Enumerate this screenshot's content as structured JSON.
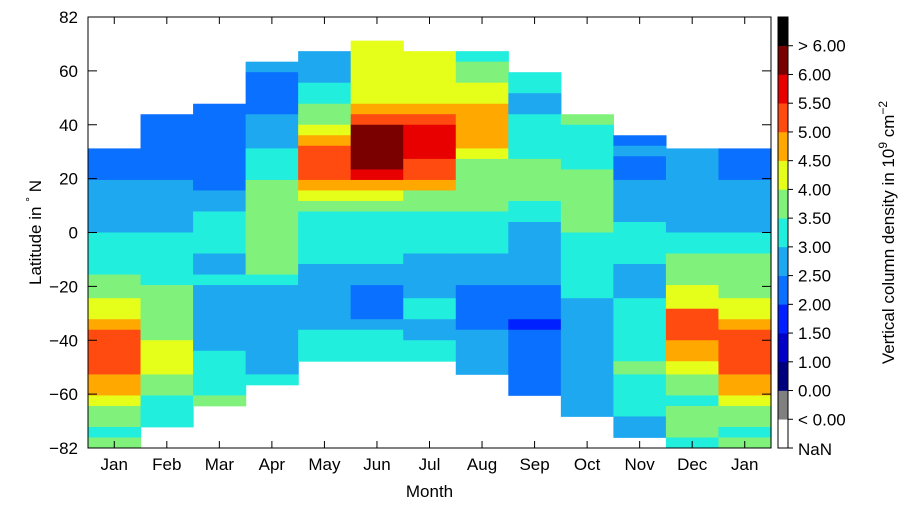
{
  "chart_data": {
    "type": "heatmap",
    "title": "",
    "xlabel": "Month",
    "ylabel": "Latitude in ° N",
    "ylabel_parts": {
      "main": "Latitude in ",
      "deg": "°",
      "tail": " N"
    },
    "x_categories": [
      "Jan",
      "Feb",
      "Mar",
      "Apr",
      "May",
      "Jun",
      "Jul",
      "Aug",
      "Sep",
      "Oct",
      "Nov",
      "Dec",
      "Jan"
    ],
    "yticks": [
      "82",
      "60",
      "40",
      "20",
      "0",
      "−20",
      "−40",
      "−60",
      "−82"
    ],
    "ylim": [
      -82,
      82
    ],
    "colorbar": {
      "label": "Vertical column density in 10⁹ cm⁻²",
      "label_parts": {
        "main": "Vertical column density in 10",
        "exp1": "9",
        "mid": " cm",
        "exp2": "−2"
      },
      "levels": [
        {
          "label": "NaN",
          "color": "#ffffff"
        },
        {
          "label": "< 0.00",
          "color": "#808080"
        },
        {
          "label": "0.00",
          "color": "#00007f"
        },
        {
          "label": "1.00",
          "color": "#0000c8"
        },
        {
          "label": "1.50",
          "color": "#0020ff"
        },
        {
          "label": "2.00",
          "color": "#0a70ff"
        },
        {
          "label": "2.50",
          "color": "#1ea8f0"
        },
        {
          "label": "3.00",
          "color": "#22eede"
        },
        {
          "label": "3.50",
          "color": "#80f27c"
        },
        {
          "label": "4.00",
          "color": "#e6ff1a"
        },
        {
          "label": "4.50",
          "color": "#ffa800"
        },
        {
          "label": "5.00",
          "color": "#ff4a10"
        },
        {
          "label": "5.50",
          "color": "#e80000"
        },
        {
          "label": "6.00",
          "color": "#7a0000"
        },
        {
          "label": "> 6.00",
          "color": "#000000"
        }
      ]
    },
    "columns": [
      {
        "month": "Jan",
        "cells": [
          {
            "lat": [
              20,
              32
            ],
            "level": "2.00"
          },
          {
            "lat": [
              0,
              20
            ],
            "level": "2.50"
          },
          {
            "lat": [
              -16,
              0
            ],
            "level": "3.00"
          },
          {
            "lat": [
              -25,
              -16
            ],
            "level": "3.50"
          },
          {
            "lat": [
              -33,
              -25
            ],
            "level": "4.00"
          },
          {
            "lat": [
              -37,
              -33
            ],
            "level": "4.50"
          },
          {
            "lat": [
              -54,
              -37
            ],
            "level": "5.00"
          },
          {
            "lat": [
              -62,
              -54
            ],
            "level": "4.50"
          },
          {
            "lat": [
              -66,
              -62
            ],
            "level": "4.00"
          },
          {
            "lat": [
              -74,
              -66
            ],
            "level": "3.50"
          },
          {
            "lat": [
              -78,
              -74
            ],
            "level": "3.00"
          },
          {
            "lat": [
              -82,
              -78
            ],
            "level": "3.50"
          }
        ]
      },
      {
        "month": "Feb",
        "cells": [
          {
            "lat": [
              20,
              45
            ],
            "level": "2.00"
          },
          {
            "lat": [
              0,
              20
            ],
            "level": "2.50"
          },
          {
            "lat": [
              -20,
              0
            ],
            "level": "3.00"
          },
          {
            "lat": [
              -41,
              -20
            ],
            "level": "3.50"
          },
          {
            "lat": [
              -54,
              -41
            ],
            "level": "4.00"
          },
          {
            "lat": [
              -62,
              -54
            ],
            "level": "3.50"
          },
          {
            "lat": [
              -74,
              -62
            ],
            "level": "3.00"
          }
        ]
      },
      {
        "month": "Mar",
        "cells": [
          {
            "lat": [
              16,
              49
            ],
            "level": "2.00"
          },
          {
            "lat": [
              8,
              16
            ],
            "level": "2.50"
          },
          {
            "lat": [
              -8,
              8
            ],
            "level": "3.00"
          },
          {
            "lat": [
              -16,
              -8
            ],
            "level": "2.50"
          },
          {
            "lat": [
              -20,
              -16
            ],
            "level": "3.00"
          },
          {
            "lat": [
              -45,
              -20
            ],
            "level": "2.50"
          },
          {
            "lat": [
              -62,
              -45
            ],
            "level": "3.00"
          },
          {
            "lat": [
              -66,
              -62
            ],
            "level": "3.50"
          }
        ]
      },
      {
        "month": "Apr",
        "cells": [
          {
            "lat": [
              61,
              65
            ],
            "level": "2.50"
          },
          {
            "lat": [
              45,
              61
            ],
            "level": "2.00"
          },
          {
            "lat": [
              32,
              45
            ],
            "level": "2.50"
          },
          {
            "lat": [
              20,
              32
            ],
            "level": "3.00"
          },
          {
            "lat": [
              -16,
              20
            ],
            "level": "3.50"
          },
          {
            "lat": [
              -20,
              -16
            ],
            "level": "3.00"
          },
          {
            "lat": [
              -54,
              -20
            ],
            "level": "2.50"
          },
          {
            "lat": [
              -58,
              -54
            ],
            "level": "3.00"
          }
        ]
      },
      {
        "month": "May",
        "cells": [
          {
            "lat": [
              57,
              69
            ],
            "level": "2.50"
          },
          {
            "lat": [
              49,
              57
            ],
            "level": "3.00"
          },
          {
            "lat": [
              41,
              49
            ],
            "level": "3.50"
          },
          {
            "lat": [
              37,
              41
            ],
            "level": "4.00"
          },
          {
            "lat": [
              33,
              37
            ],
            "level": "4.50"
          },
          {
            "lat": [
              20,
              33
            ],
            "level": "5.00"
          },
          {
            "lat": [
              16,
              20
            ],
            "level": "4.50"
          },
          {
            "lat": [
              12,
              16
            ],
            "level": "4.00"
          },
          {
            "lat": [
              8,
              12
            ],
            "level": "3.50"
          },
          {
            "lat": [
              4,
              8
            ],
            "level": "3.00"
          },
          {
            "lat": [
              -12,
              4
            ],
            "level": "3.00"
          },
          {
            "lat": [
              -37,
              -12
            ],
            "level": "2.50"
          },
          {
            "lat": [
              -49,
              -37
            ],
            "level": "3.00"
          }
        ]
      },
      {
        "month": "Jun",
        "cells": [
          {
            "lat": [
              49,
              73
            ],
            "level": "4.00"
          },
          {
            "lat": [
              45,
              49
            ],
            "level": "4.50"
          },
          {
            "lat": [
              41,
              45
            ],
            "level": "5.00"
          },
          {
            "lat": [
              24,
              41
            ],
            "level": "6.00"
          },
          {
            "lat": [
              20,
              24
            ],
            "level": "5.50"
          },
          {
            "lat": [
              16,
              20
            ],
            "level": "4.50"
          },
          {
            "lat": [
              12,
              16
            ],
            "level": "4.00"
          },
          {
            "lat": [
              8,
              12
            ],
            "level": "3.50"
          },
          {
            "lat": [
              -12,
              8
            ],
            "level": "3.00"
          },
          {
            "lat": [
              -20,
              -12
            ],
            "level": "2.50"
          },
          {
            "lat": [
              -33,
              -20
            ],
            "level": "2.00"
          },
          {
            "lat": [
              -37,
              -33
            ],
            "level": "2.50"
          },
          {
            "lat": [
              -49,
              -37
            ],
            "level": "3.00"
          }
        ]
      },
      {
        "month": "Jul",
        "cells": [
          {
            "lat": [
              49,
              69
            ],
            "level": "4.00"
          },
          {
            "lat": [
              45,
              49
            ],
            "level": "4.50"
          },
          {
            "lat": [
              41,
              45
            ],
            "level": "5.00"
          },
          {
            "lat": [
              28,
              41
            ],
            "level": "5.50"
          },
          {
            "lat": [
              20,
              28
            ],
            "level": "5.00"
          },
          {
            "lat": [
              16,
              20
            ],
            "level": "4.50"
          },
          {
            "lat": [
              8,
              16
            ],
            "level": "3.50"
          },
          {
            "lat": [
              -8,
              8
            ],
            "level": "3.00"
          },
          {
            "lat": [
              -25,
              -8
            ],
            "level": "2.50"
          },
          {
            "lat": [
              -33,
              -25
            ],
            "level": "3.00"
          },
          {
            "lat": [
              -41,
              -33
            ],
            "level": "2.50"
          },
          {
            "lat": [
              -49,
              -41
            ],
            "level": "3.00"
          }
        ]
      },
      {
        "month": "Aug",
        "cells": [
          {
            "lat": [
              65,
              69
            ],
            "level": "3.00"
          },
          {
            "lat": [
              57,
              65
            ],
            "level": "3.50"
          },
          {
            "lat": [
              49,
              57
            ],
            "level": "4.00"
          },
          {
            "lat": [
              32,
              49
            ],
            "level": "4.50"
          },
          {
            "lat": [
              28,
              32
            ],
            "level": "4.00"
          },
          {
            "lat": [
              8,
              28
            ],
            "level": "3.50"
          },
          {
            "lat": [
              -8,
              8
            ],
            "level": "3.00"
          },
          {
            "lat": [
              -20,
              -8
            ],
            "level": "2.50"
          },
          {
            "lat": [
              -37,
              -20
            ],
            "level": "2.00"
          },
          {
            "lat": [
              -54,
              -37
            ],
            "level": "2.50"
          }
        ]
      },
      {
        "month": "Sep",
        "cells": [
          {
            "lat": [
              53,
              61
            ],
            "level": "3.00"
          },
          {
            "lat": [
              45,
              53
            ],
            "level": "2.50"
          },
          {
            "lat": [
              28,
              45
            ],
            "level": "3.00"
          },
          {
            "lat": [
              12,
              28
            ],
            "level": "3.50"
          },
          {
            "lat": [
              4,
              12
            ],
            "level": "3.00"
          },
          {
            "lat": [
              -20,
              4
            ],
            "level": "2.50"
          },
          {
            "lat": [
              -33,
              -20
            ],
            "level": "2.00"
          },
          {
            "lat": [
              -37,
              -33
            ],
            "level": "1.50"
          },
          {
            "lat": [
              -62,
              -37
            ],
            "level": "2.00"
          }
        ]
      },
      {
        "month": "Oct",
        "cells": [
          {
            "lat": [
              41,
              45
            ],
            "level": "3.50"
          },
          {
            "lat": [
              24,
              41
            ],
            "level": "3.00"
          },
          {
            "lat": [
              0,
              24
            ],
            "level": "3.50"
          },
          {
            "lat": [
              -25,
              0
            ],
            "level": "3.00"
          },
          {
            "lat": [
              -70,
              -25
            ],
            "level": "2.50"
          }
        ]
      },
      {
        "month": "Nov",
        "cells": [
          {
            "lat": [
              33,
              37
            ],
            "level": "2.00"
          },
          {
            "lat": [
              29,
              33
            ],
            "level": "2.50"
          },
          {
            "lat": [
              20,
              29
            ],
            "level": "2.00"
          },
          {
            "lat": [
              4,
              20
            ],
            "level": "2.50"
          },
          {
            "lat": [
              -12,
              4
            ],
            "level": "3.00"
          },
          {
            "lat": [
              -25,
              -12
            ],
            "level": "2.50"
          },
          {
            "lat": [
              -49,
              -25
            ],
            "level": "3.00"
          },
          {
            "lat": [
              -54,
              -49
            ],
            "level": "3.50"
          },
          {
            "lat": [
              -70,
              -54
            ],
            "level": "3.00"
          },
          {
            "lat": [
              -78,
              -70
            ],
            "level": "2.50"
          }
        ]
      },
      {
        "month": "Dec",
        "cells": [
          {
            "lat": [
              0,
              32
            ],
            "level": "2.50"
          },
          {
            "lat": [
              -8,
              0
            ],
            "level": "3.00"
          },
          {
            "lat": [
              -20,
              -8
            ],
            "level": "3.50"
          },
          {
            "lat": [
              -29,
              -20
            ],
            "level": "4.00"
          },
          {
            "lat": [
              -41,
              -29
            ],
            "level": "5.00"
          },
          {
            "lat": [
              -49,
              -41
            ],
            "level": "4.50"
          },
          {
            "lat": [
              -54,
              -49
            ],
            "level": "4.00"
          },
          {
            "lat": [
              -62,
              -54
            ],
            "level": "3.50"
          },
          {
            "lat": [
              -66,
              -62
            ],
            "level": "3.00"
          },
          {
            "lat": [
              -78,
              -66
            ],
            "level": "3.50"
          },
          {
            "lat": [
              -82,
              -78
            ],
            "level": "3.00"
          }
        ]
      },
      {
        "month": "Jan",
        "cells": [
          {
            "lat": [
              20,
              32
            ],
            "level": "2.00"
          },
          {
            "lat": [
              0,
              20
            ],
            "level": "2.50"
          },
          {
            "lat": [
              -8,
              0
            ],
            "level": "3.00"
          },
          {
            "lat": [
              -25,
              -8
            ],
            "level": "3.50"
          },
          {
            "lat": [
              -33,
              -25
            ],
            "level": "4.00"
          },
          {
            "lat": [
              -37,
              -33
            ],
            "level": "4.50"
          },
          {
            "lat": [
              -54,
              -37
            ],
            "level": "5.00"
          },
          {
            "lat": [
              -62,
              -54
            ],
            "level": "4.50"
          },
          {
            "lat": [
              -66,
              -62
            ],
            "level": "4.00"
          },
          {
            "lat": [
              -74,
              -66
            ],
            "level": "3.50"
          },
          {
            "lat": [
              -78,
              -74
            ],
            "level": "3.00"
          },
          {
            "lat": [
              -82,
              -78
            ],
            "level": "3.50"
          }
        ]
      }
    ]
  }
}
